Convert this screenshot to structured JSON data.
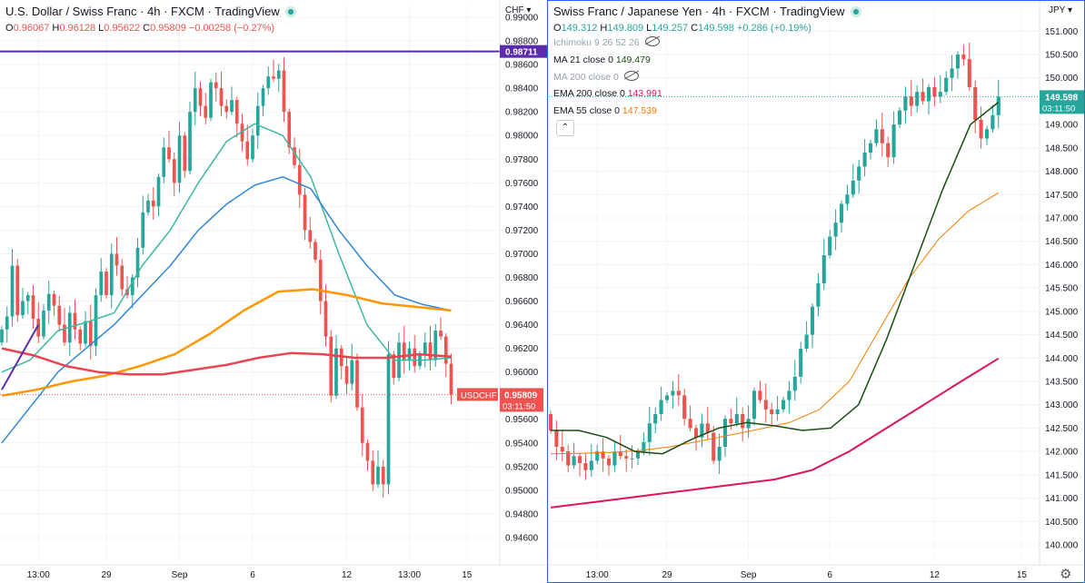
{
  "colors": {
    "up": "#26a69a",
    "down": "#ef5350",
    "grid": "#f0f3fa",
    "axis_text": "#131722",
    "ma_teal": "#3fb6a2",
    "ma_blue": "#2f86d8",
    "ma_orange": "#ff9800",
    "ma_red": "#e84452",
    "trend_purple": "#5b2bab",
    "ma21": "#1b4d12",
    "ema200": "#e0145a",
    "ema55": "#f57c00",
    "accent_blue": "#2962ff"
  },
  "left_chart": {
    "title": "U.S. Dollar / Swiss Franc · 4h · FXCM · TradingView",
    "ohlc": [
      {
        "label": "O",
        "value": "0.96067"
      },
      {
        "label": "H",
        "value": "0.96128"
      },
      {
        "label": "L",
        "value": "0.95622"
      },
      {
        "label": "C",
        "value": "0.95809"
      },
      {
        "label": "",
        "value": "−0.00258 (−0.27%)"
      }
    ],
    "currency": "CHF",
    "price_tag": {
      "symbol": "USDCHF",
      "price": "0.95809",
      "countdown": "03:11:50"
    },
    "line_tag": "0.98711"
  },
  "right_chart": {
    "title": "Swiss Franc / Japanese Yen · 4h · FXCM · TradingView",
    "ohlc": [
      {
        "label": "O",
        "value": "149.312"
      },
      {
        "label": "H",
        "value": "149.809"
      },
      {
        "label": "L",
        "value": "149.257"
      },
      {
        "label": "C",
        "value": "149.598"
      },
      {
        "label": "",
        "value": "+0.286 (+0.19%)"
      }
    ],
    "currency": "JPY",
    "indicators": [
      {
        "name": "Ichimoku 9 26 52 26",
        "value": "",
        "hidden": true
      },
      {
        "name": "MA 21 close 0",
        "value": "149.479",
        "hidden": false
      },
      {
        "name": "MA 200 close 0",
        "value": "",
        "hidden": true
      },
      {
        "name": "EMA 200 close 0",
        "value": "143.991",
        "hidden": false
      },
      {
        "name": "EMA 55 close 0",
        "value": "147.539",
        "hidden": false
      }
    ],
    "price_tag": {
      "price": "149.598",
      "countdown": "03:11:50"
    },
    "collapse_label": "⌃"
  },
  "chart_data": [
    {
      "type": "candlestick",
      "title": "U.S. Dollar / Swiss Franc · 4h · FXCM",
      "ylabel": "CHF",
      "ylim": [
        0.944,
        0.991
      ],
      "y_ticks": [
        0.946,
        0.948,
        0.95,
        0.952,
        0.954,
        0.956,
        0.958,
        0.96,
        0.962,
        0.964,
        0.966,
        0.968,
        0.97,
        0.972,
        0.974,
        0.976,
        0.978,
        0.98,
        0.982,
        0.984,
        0.986,
        0.988,
        0.99
      ],
      "x_ticks": [
        {
          "label": "13:00",
          "i": 7
        },
        {
          "label": "29",
          "i": 20
        },
        {
          "label": "Sep",
          "i": 34
        },
        {
          "label": "6",
          "i": 48
        },
        {
          "label": "12",
          "i": 66
        },
        {
          "label": "13:00",
          "i": 78
        },
        {
          "label": "15",
          "i": 89
        }
      ],
      "close": [
        0.9636,
        0.9647,
        0.969,
        0.9648,
        0.966,
        0.9665,
        0.9645,
        0.963,
        0.9652,
        0.9666,
        0.9656,
        0.964,
        0.9625,
        0.965,
        0.9636,
        0.9624,
        0.9643,
        0.9622,
        0.9665,
        0.9685,
        0.9665,
        0.97,
        0.969,
        0.967,
        0.9665,
        0.968,
        0.9705,
        0.9735,
        0.9745,
        0.974,
        0.9765,
        0.979,
        0.978,
        0.976,
        0.98,
        0.977,
        0.982,
        0.984,
        0.9825,
        0.9815,
        0.9845,
        0.984,
        0.9825,
        0.982,
        0.983,
        0.981,
        0.9795,
        0.978,
        0.98,
        0.9825,
        0.984,
        0.985,
        0.9848,
        0.9855,
        0.982,
        0.979,
        0.9775,
        0.975,
        0.972,
        0.971,
        0.9695,
        0.966,
        0.963,
        0.958,
        0.962,
        0.9605,
        0.959,
        0.961,
        0.957,
        0.954,
        0.9525,
        0.9505,
        0.952,
        0.9505,
        0.9615,
        0.9595,
        0.9625,
        0.961,
        0.962,
        0.9605,
        0.9615,
        0.9625,
        0.961,
        0.9635,
        0.963,
        0.9607,
        0.9581
      ],
      "series": [
        {
          "name": "MA fast (teal)",
          "values": [
            0.96,
            0.961,
            0.9635,
            0.9642,
            0.965,
            0.969,
            0.972,
            0.976,
            0.9795,
            0.981,
            0.98,
            0.9765,
            0.97,
            0.964,
            0.961,
            0.961,
            0.9612
          ]
        },
        {
          "name": "MA (blue)",
          "values": [
            0.954,
            0.957,
            0.96,
            0.962,
            0.964,
            0.9665,
            0.969,
            0.972,
            0.9742,
            0.9758,
            0.9765,
            0.9755,
            0.972,
            0.969,
            0.9665,
            0.9657,
            0.9652
          ]
        },
        {
          "name": "MA (orange)",
          "values": [
            0.958,
            0.9585,
            0.9592,
            0.9597,
            0.9605,
            0.9615,
            0.9632,
            0.9652,
            0.9668,
            0.967,
            0.9665,
            0.9658,
            0.9655,
            0.9652
          ]
        },
        {
          "name": "MA (red)",
          "values": [
            0.962,
            0.9614,
            0.9605,
            0.96,
            0.9598,
            0.9598,
            0.9602,
            0.9606,
            0.9612,
            0.9616,
            0.9615,
            0.9612,
            0.9612,
            0.9615,
            0.9613
          ]
        }
      ],
      "horizontal_line": 0.98711,
      "trendline": [
        [
          0.9585,
          0
        ],
        [
          0.964,
          7
        ]
      ]
    },
    {
      "type": "candlestick",
      "title": "Swiss Franc / Japanese Yen · 4h · FXCM",
      "ylabel": "JPY",
      "ylim": [
        139.65,
        151.55
      ],
      "y_ticks": [
        140.0,
        140.5,
        141.0,
        141.5,
        142.0,
        142.5,
        143.0,
        143.5,
        144.0,
        144.5,
        145.0,
        145.5,
        146.0,
        146.5,
        147.0,
        147.5,
        148.0,
        148.5,
        149.0,
        149.5,
        150.0,
        150.5,
        151.0
      ],
      "x_ticks": [
        {
          "label": "13:00",
          "i": 8
        },
        {
          "label": "29",
          "i": 20
        },
        {
          "label": "Sep",
          "i": 34
        },
        {
          "label": "6",
          "i": 48
        },
        {
          "label": "12",
          "i": 66
        },
        {
          "label": "15",
          "i": 81
        }
      ],
      "close": [
        142.45,
        142.1,
        142.0,
        141.7,
        141.9,
        141.75,
        141.6,
        141.8,
        142.0,
        141.85,
        141.7,
        142.0,
        141.9,
        141.85,
        141.85,
        142.0,
        142.2,
        142.6,
        142.8,
        143.1,
        143.2,
        143.3,
        143.2,
        142.7,
        142.5,
        142.3,
        142.6,
        142.4,
        141.8,
        142.1,
        142.7,
        142.6,
        142.8,
        142.5,
        142.7,
        143.3,
        143.1,
        142.9,
        142.8,
        142.9,
        143.1,
        143.3,
        143.6,
        144.2,
        144.5,
        145.1,
        145.6,
        146.2,
        146.6,
        146.9,
        147.3,
        147.5,
        147.8,
        148.1,
        148.4,
        148.6,
        148.9,
        148.6,
        148.3,
        149.0,
        149.3,
        149.6,
        149.4,
        149.7,
        149.5,
        149.8,
        149.6,
        149.7,
        150.0,
        150.2,
        150.5,
        150.4,
        149.8,
        149.1,
        148.7,
        148.9,
        149.2,
        149.598
      ],
      "series": [
        {
          "name": "MA 21 close 0",
          "values": [
            142.45,
            142.45,
            142.3,
            142.0,
            141.95,
            142.25,
            142.5,
            142.62,
            142.55,
            142.45,
            142.5,
            143.0,
            144.4,
            146.0,
            147.6,
            149.0,
            149.479
          ]
        },
        {
          "name": "EMA 55 close 0",
          "values": [
            141.95,
            141.96,
            141.98,
            142.02,
            142.1,
            142.22,
            142.35,
            142.48,
            142.62,
            142.9,
            143.5,
            144.6,
            145.7,
            146.55,
            147.15,
            147.539
          ]
        },
        {
          "name": "EMA 200 close 0",
          "values": [
            140.8,
            140.9,
            141.0,
            141.1,
            141.2,
            141.3,
            141.4,
            141.6,
            142.0,
            142.5,
            143.0,
            143.5,
            143.991
          ]
        }
      ]
    }
  ]
}
